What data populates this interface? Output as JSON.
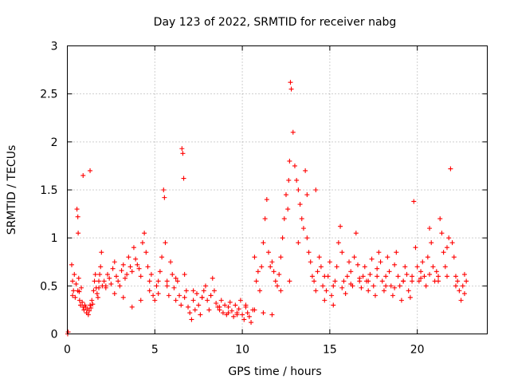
{
  "chart_data": {
    "type": "scatter",
    "title": "Day 123 of 2022, SRMTID for receiver nabg",
    "xlabel": "GPS time / hours",
    "ylabel": "SRMTID / TECUs",
    "xlim": [
      0,
      24
    ],
    "ylim": [
      0,
      3
    ],
    "xticks": [
      0,
      5,
      10,
      15,
      20
    ],
    "xtick_labels": [
      "0",
      "5",
      "10",
      "15",
      "20"
    ],
    "yticks": [
      0,
      0.5,
      1,
      1.5,
      2,
      2.5,
      3
    ],
    "ytick_labels": [
      "0",
      "0.5",
      "1",
      "1.5",
      "2",
      "2.5",
      "3"
    ],
    "grid": true,
    "marker": "+",
    "color": "#ff0000",
    "series": [
      {
        "name": "SRMTID",
        "x": [
          0.02,
          0.05,
          0.25,
          0.3,
          0.35,
          0.4,
          0.45,
          0.5,
          0.55,
          0.6,
          0.62,
          0.65,
          0.68,
          0.7,
          0.75,
          0.8,
          0.85,
          0.9,
          0.95,
          1.0,
          1.05,
          1.1,
          1.15,
          1.2,
          1.25,
          1.3,
          1.35,
          1.4,
          1.45,
          1.5,
          1.55,
          1.6,
          1.65,
          1.7,
          1.75,
          1.8,
          1.85,
          1.9,
          1.95,
          2.0,
          2.1,
          2.2,
          2.3,
          2.4,
          2.5,
          2.6,
          2.7,
          2.8,
          2.9,
          3.0,
          3.1,
          3.2,
          3.3,
          3.4,
          3.5,
          3.6,
          3.7,
          3.8,
          3.9,
          4.0,
          4.1,
          4.2,
          4.3,
          4.4,
          4.5,
          4.6,
          4.7,
          4.8,
          4.9,
          5.0,
          5.1,
          5.2,
          5.3,
          5.4,
          5.5,
          5.55,
          5.6,
          5.7,
          5.8,
          5.9,
          6.0,
          6.1,
          6.2,
          6.3,
          6.4,
          6.5,
          6.55,
          6.6,
          6.65,
          6.7,
          6.8,
          6.9,
          7.0,
          7.1,
          7.2,
          7.3,
          7.4,
          7.5,
          7.6,
          7.7,
          7.8,
          7.9,
          8.0,
          8.1,
          8.2,
          8.3,
          8.4,
          8.5,
          8.6,
          8.7,
          8.8,
          8.9,
          9.0,
          9.1,
          9.2,
          9.3,
          9.4,
          9.5,
          9.6,
          9.7,
          9.8,
          9.9,
          10.0,
          10.1,
          10.2,
          10.3,
          10.4,
          10.5,
          10.6,
          10.7,
          10.8,
          10.9,
          11.0,
          11.1,
          11.2,
          11.3,
          11.4,
          11.5,
          11.6,
          11.7,
          11.8,
          11.9,
          12.0,
          12.1,
          12.2,
          12.3,
          12.4,
          12.5,
          12.6,
          12.65,
          12.7,
          12.75,
          12.8,
          12.9,
          13.0,
          13.1,
          13.2,
          13.3,
          13.4,
          13.5,
          13.6,
          13.7,
          13.8,
          13.9,
          14.0,
          14.1,
          14.2,
          14.3,
          14.4,
          14.5,
          14.6,
          14.7,
          14.8,
          14.9,
          15.0,
          15.1,
          15.2,
          15.3,
          15.4,
          15.5,
          15.6,
          15.7,
          15.8,
          15.9,
          16.0,
          16.1,
          16.2,
          16.3,
          16.4,
          16.5,
          16.6,
          16.7,
          16.8,
          16.9,
          17.0,
          17.1,
          17.2,
          17.3,
          17.4,
          17.5,
          17.6,
          17.7,
          17.8,
          17.9,
          18.0,
          18.1,
          18.2,
          18.3,
          18.4,
          18.5,
          18.6,
          18.7,
          18.8,
          18.9,
          19.0,
          19.1,
          19.2,
          19.3,
          19.4,
          19.5,
          19.6,
          19.7,
          19.8,
          19.9,
          20.0,
          20.1,
          20.2,
          20.3,
          20.4,
          20.5,
          20.6,
          20.7,
          20.8,
          20.9,
          21.0,
          21.1,
          21.2,
          21.3,
          21.4,
          21.5,
          21.6,
          21.7,
          21.8,
          21.9,
          22.0,
          22.1,
          22.2,
          22.3,
          22.4,
          22.5,
          22.6,
          22.7,
          22.8,
          0.3,
          0.6,
          0.9,
          1.3,
          1.8,
          2.2,
          2.7,
          3.2,
          3.7,
          4.2,
          4.7,
          5.2,
          5.7,
          6.2,
          6.7,
          7.2,
          7.7,
          8.2,
          8.7,
          9.2,
          9.7,
          10.2,
          10.7,
          11.2,
          11.7,
          12.2,
          12.7,
          13.2,
          13.7,
          14.2,
          14.7,
          15.2,
          15.7,
          16.2,
          16.7,
          17.2,
          17.7,
          18.2,
          18.7,
          19.2,
          19.7,
          20.2,
          20.7,
          21.2,
          21.7,
          22.2,
          22.7
        ],
        "y": [
          0.0,
          0.02,
          0.72,
          0.55,
          0.45,
          0.62,
          0.38,
          0.52,
          1.3,
          1.22,
          1.05,
          0.58,
          0.44,
          0.35,
          0.3,
          0.48,
          0.33,
          0.28,
          0.25,
          0.3,
          0.28,
          0.22,
          0.26,
          0.2,
          0.24,
          0.3,
          0.27,
          0.35,
          0.31,
          0.45,
          0.55,
          0.62,
          0.48,
          0.42,
          0.38,
          0.55,
          0.62,
          0.7,
          0.85,
          0.5,
          0.55,
          0.48,
          0.62,
          0.58,
          0.52,
          0.68,
          0.75,
          0.6,
          0.55,
          0.5,
          0.66,
          0.72,
          0.58,
          0.62,
          0.8,
          0.7,
          0.65,
          0.9,
          0.78,
          0.72,
          0.68,
          0.6,
          0.95,
          1.05,
          0.85,
          0.7,
          0.55,
          0.62,
          0.4,
          0.35,
          0.5,
          0.42,
          0.65,
          0.8,
          1.5,
          1.42,
          0.95,
          0.55,
          0.4,
          0.75,
          0.62,
          0.48,
          0.35,
          0.55,
          0.4,
          0.3,
          1.93,
          1.88,
          1.62,
          0.38,
          0.45,
          0.28,
          0.22,
          0.15,
          0.35,
          0.25,
          0.42,
          0.3,
          0.2,
          0.38,
          0.45,
          0.5,
          0.35,
          0.25,
          0.4,
          0.58,
          0.45,
          0.32,
          0.28,
          0.25,
          0.35,
          0.22,
          0.3,
          0.2,
          0.28,
          0.33,
          0.24,
          0.18,
          0.3,
          0.22,
          0.26,
          0.35,
          0.2,
          0.15,
          0.28,
          0.22,
          0.18,
          0.12,
          0.25,
          0.8,
          0.55,
          0.65,
          0.45,
          0.7,
          0.95,
          1.2,
          1.4,
          0.85,
          0.7,
          0.75,
          0.65,
          0.55,
          0.5,
          0.62,
          0.8,
          1.0,
          1.2,
          1.45,
          1.3,
          1.6,
          1.8,
          2.62,
          2.55,
          2.1,
          1.75,
          1.6,
          1.5,
          1.35,
          1.2,
          1.1,
          1.7,
          1.0,
          0.85,
          0.75,
          0.6,
          0.55,
          0.45,
          0.65,
          0.8,
          0.7,
          0.5,
          0.35,
          0.45,
          0.6,
          0.75,
          0.4,
          0.3,
          0.55,
          0.7,
          0.95,
          1.12,
          0.85,
          0.55,
          0.42,
          0.6,
          0.75,
          0.65,
          0.5,
          0.8,
          1.05,
          0.72,
          0.55,
          0.48,
          0.6,
          0.7,
          0.55,
          0.45,
          0.62,
          0.78,
          0.5,
          0.4,
          0.68,
          0.85,
          0.75,
          0.55,
          0.45,
          0.6,
          0.8,
          0.65,
          0.5,
          0.4,
          0.72,
          0.85,
          0.6,
          0.5,
          0.35,
          0.55,
          0.7,
          0.62,
          0.45,
          0.38,
          0.55,
          1.38,
          0.9,
          0.7,
          0.55,
          0.65,
          0.75,
          0.6,
          0.5,
          0.8,
          1.1,
          0.95,
          0.7,
          0.55,
          0.65,
          0.6,
          1.2,
          1.05,
          0.85,
          0.7,
          0.9,
          1.0,
          1.72,
          0.95,
          0.8,
          0.6,
          0.55,
          0.45,
          0.35,
          0.5,
          0.62,
          0.55,
          0.4,
          0.45,
          1.65,
          1.7,
          0.48,
          0.5,
          0.42,
          0.38,
          0.28,
          0.35,
          0.45,
          0.55,
          0.5,
          0.58,
          0.62,
          0.45,
          0.38,
          0.4,
          0.28,
          0.22,
          0.2,
          0.3,
          0.25,
          0.22,
          0.2,
          0.45,
          0.55,
          0.95,
          1.45,
          1.5,
          0.6,
          0.5,
          0.48,
          0.52,
          0.58,
          0.55,
          0.6,
          0.5,
          0.48,
          0.55,
          0.6,
          0.58,
          0.62,
          0.55,
          0.6,
          0.5,
          0.42
        ]
      }
    ]
  }
}
